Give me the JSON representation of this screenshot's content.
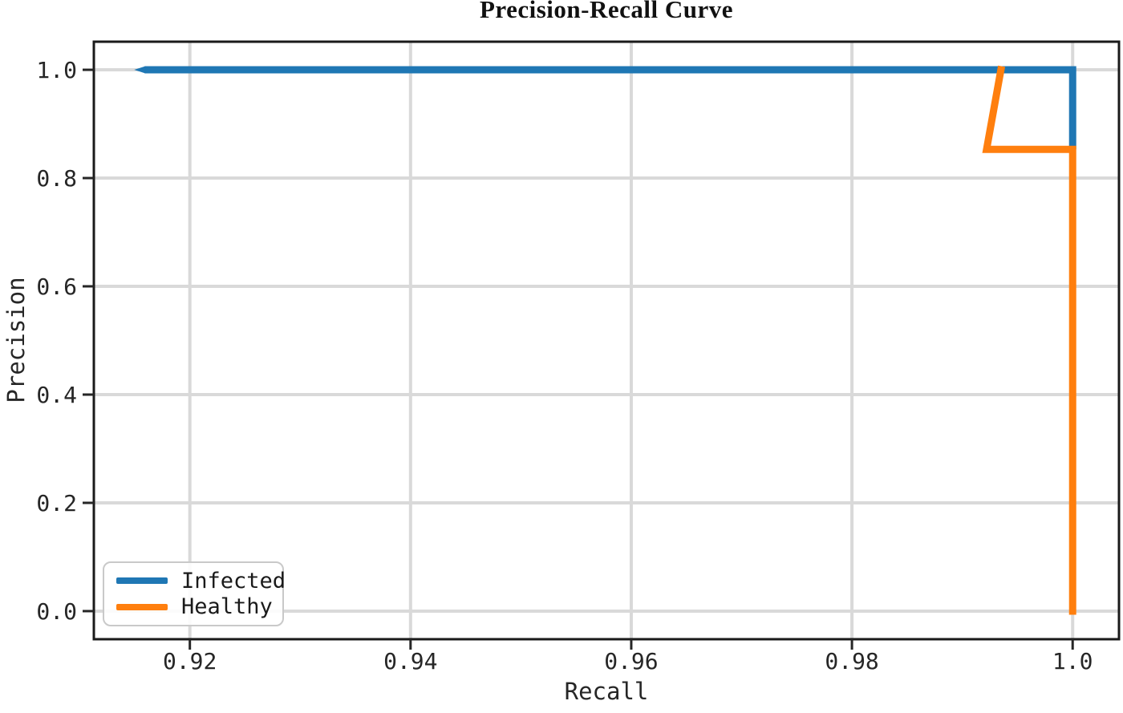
{
  "chart_data": {
    "type": "line",
    "title": "Precision-Recall Curve",
    "xlabel": "Recall",
    "ylabel": "Precision",
    "grid": true,
    "background_color": "#ffffff",
    "grid_color": "#d9d9d9",
    "spine_color": "#1a1a1a",
    "tick_color": "#262626",
    "xlim": [
      0.9113,
      1.0042
    ],
    "ylim": [
      -0.0519,
      1.0519
    ],
    "x_ticks": [
      0.92,
      0.94,
      0.96,
      0.98,
      1.0
    ],
    "x_tick_labels": [
      "0.92",
      "0.94",
      "0.96",
      "0.98",
      "1.0"
    ],
    "y_ticks": [
      0.0,
      0.2,
      0.4,
      0.6,
      0.8,
      1.0
    ],
    "y_tick_labels": [
      "0.0",
      "0.2",
      "0.4",
      "0.6",
      "0.8",
      "1.0"
    ],
    "line_width": 9,
    "legend_position": "lower left",
    "series": [
      {
        "name": "Infected",
        "color": "#1f77b4",
        "pointed_start": true,
        "points": [
          [
            0.9159,
            1.0
          ],
          [
            1.0,
            1.0
          ],
          [
            1.0,
            0.853
          ]
        ]
      },
      {
        "name": "Healthy",
        "color": "#ff7f0e",
        "pointed_start": false,
        "points": [
          [
            0.9935,
            1.0
          ],
          [
            0.9922,
            0.853
          ],
          [
            1.0,
            0.853
          ],
          [
            1.0,
            0.0
          ]
        ]
      }
    ]
  },
  "legend": {
    "entries": [
      {
        "label": "Infected"
      },
      {
        "label": "Healthy"
      }
    ]
  }
}
